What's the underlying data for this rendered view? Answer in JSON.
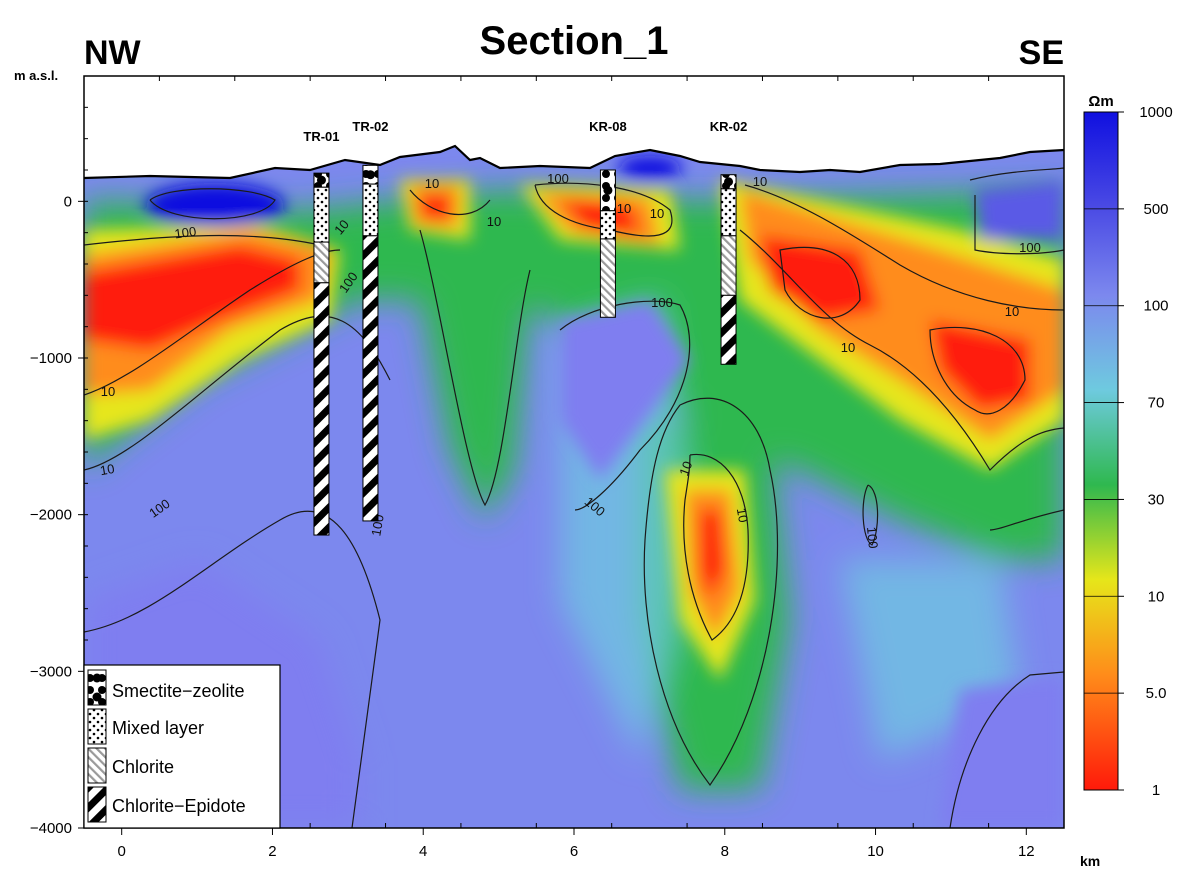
{
  "chart_data": {
    "type": "heatmap",
    "title": "Section_1",
    "orientation_left": "NW",
    "orientation_right": "SE",
    "ylabel": "m a.s.l.",
    "xlabel": "km",
    "xlim": [
      -0.5,
      12.5
    ],
    "ylim": [
      -4000,
      800
    ],
    "x_ticks": [
      "0",
      "2",
      "4",
      "6",
      "8",
      "10",
      "12"
    ],
    "y_ticks": [
      "0",
      "−1000",
      "−2000",
      "−3000",
      "−4000"
    ],
    "colorbar": {
      "unit": "Ωm",
      "ticks": [
        "1000",
        "500",
        "100",
        "70",
        "30",
        "10",
        "5.0",
        "1"
      ],
      "scale": "log",
      "colors": [
        "#1010e0",
        "#5a5ae6",
        "#7c88ee",
        "#6ecadf",
        "#2fb84f",
        "#e6e61a",
        "#ff8c1a",
        "#ff1a0a"
      ]
    },
    "contour_labels": [
      "100",
      "10",
      "10",
      "100",
      "10",
      "10",
      "100",
      "10",
      "10",
      "100",
      "100",
      "10",
      "100",
      "10",
      "10",
      "100",
      "10",
      "100",
      "10",
      "10",
      "100"
    ],
    "boreholes": [
      {
        "name": "TR-01",
        "x_km": 2.65,
        "top_m": 180,
        "bottom_m": -2130,
        "segments": [
          {
            "type": "smectite-zeolite",
            "from": 180,
            "to": 90
          },
          {
            "type": "mixed-layer",
            "from": 90,
            "to": -260
          },
          {
            "type": "chlorite",
            "from": -260,
            "to": -520
          },
          {
            "type": "chlorite-epidote",
            "from": -520,
            "to": -2130
          }
        ]
      },
      {
        "name": "TR-02",
        "x_km": 3.3,
        "top_m": 230,
        "bottom_m": -2040,
        "segments": [
          {
            "type": "smectite-zeolite",
            "from": 230,
            "to": 110
          },
          {
            "type": "mixed-layer",
            "from": 110,
            "to": -220
          },
          {
            "type": "chlorite-epidote",
            "from": -220,
            "to": -2040
          }
        ]
      },
      {
        "name": "KR-08",
        "x_km": 6.45,
        "top_m": 200,
        "bottom_m": -740,
        "segments": [
          {
            "type": "smectite-zeolite",
            "from": 200,
            "to": -60
          },
          {
            "type": "mixed-layer",
            "from": -60,
            "to": -240
          },
          {
            "type": "chlorite",
            "from": -240,
            "to": -740
          }
        ]
      },
      {
        "name": "KR-02",
        "x_km": 8.05,
        "top_m": 170,
        "bottom_m": -1040,
        "segments": [
          {
            "type": "smectite-zeolite",
            "from": 170,
            "to": 80
          },
          {
            "type": "mixed-layer",
            "from": 80,
            "to": -220
          },
          {
            "type": "chlorite",
            "from": -220,
            "to": -600
          },
          {
            "type": "chlorite-epidote",
            "from": -600,
            "to": -1040
          }
        ]
      }
    ],
    "legend": {
      "placement": "bottom-left",
      "items": [
        {
          "label": "Smectite−zeolite",
          "type": "smectite-zeolite"
        },
        {
          "label": "Mixed layer",
          "type": "mixed-layer"
        },
        {
          "label": "Chlorite",
          "type": "chlorite"
        },
        {
          "label": "Chlorite−Epidote",
          "type": "chlorite-epidote"
        }
      ]
    }
  }
}
